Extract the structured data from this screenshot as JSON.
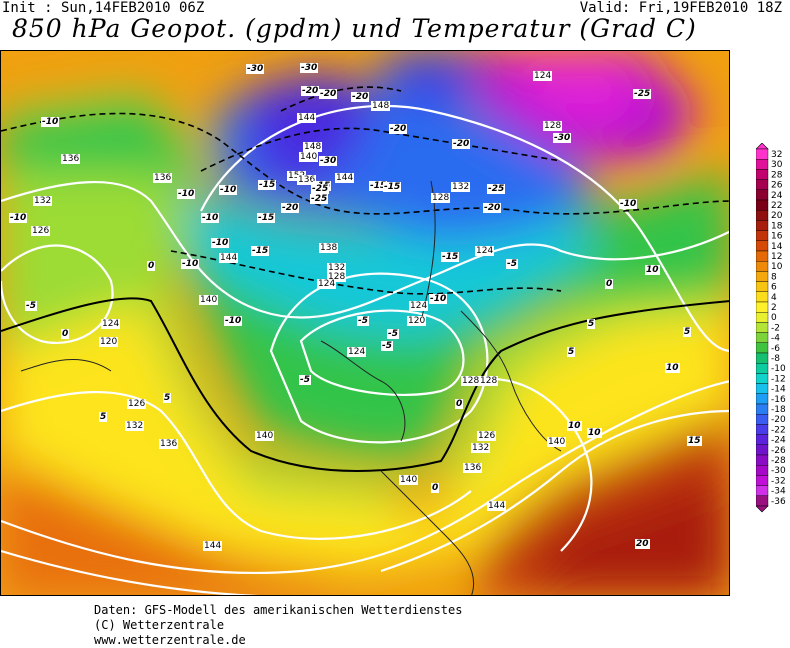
{
  "header": {
    "init": "Init : Sun,14FEB2010 06Z",
    "valid": "Valid: Fri,19FEB2010 18Z",
    "title": "850 hPa Geopot. (gpdm) und Temperatur (Grad C)"
  },
  "footer": {
    "line1": "Daten: GFS-Modell des amerikanischen Wetterdienstes",
    "line2": "(C) Wetterzentrale",
    "line3": "www.wetterzentrale.de"
  },
  "legend": {
    "ticks": [
      "32",
      "30",
      "28",
      "26",
      "24",
      "22",
      "20",
      "18",
      "16",
      "14",
      "12",
      "10",
      "8",
      "6",
      "4",
      "2",
      "0",
      "-2",
      "-4",
      "-6",
      "-8",
      "-10",
      "-12",
      "-14",
      "-16",
      "-18",
      "-20",
      "-22",
      "-24",
      "-26",
      "-28",
      "-30",
      "-32",
      "-34",
      "-36"
    ],
    "colors": [
      "#ff33cc",
      "#e0129a",
      "#c2006e",
      "#a60050",
      "#8c0030",
      "#7a0018",
      "#8f1010",
      "#a81e0c",
      "#c2350a",
      "#d64a08",
      "#e56a06",
      "#ef8a08",
      "#f5a80e",
      "#f8c412",
      "#fbdd1c",
      "#fef02a",
      "#e8f030",
      "#b4e436",
      "#7cd43a",
      "#40c440",
      "#16c070",
      "#0ccca0",
      "#10d4cc",
      "#18c0ec",
      "#1e9ef4",
      "#2a7ef2",
      "#3a5cf0",
      "#4a3ce8",
      "#5c22dc",
      "#7014cc",
      "#8a0cc4",
      "#a608c8",
      "#c010d8",
      "#d030e8",
      "#9a1080"
    ]
  },
  "geopotential_labels": [
    "136",
    "136",
    "132",
    "126",
    "124",
    "120",
    "126",
    "132",
    "136",
    "140",
    "144",
    "140",
    "144",
    "148",
    "152",
    "136",
    "140",
    "144",
    "148",
    "138",
    "132",
    "128",
    "124",
    "128",
    "132",
    "124",
    "120",
    "124",
    "124",
    "128",
    "128",
    "126",
    "132",
    "136",
    "140",
    "140",
    "144",
    "144",
    "124",
    "128"
  ],
  "temperature_labels": [
    "-30",
    "-30",
    "-20",
    "-20",
    "-25",
    "-15",
    "-10",
    "-10",
    "-10",
    "-10",
    "-10",
    "-10",
    "-10",
    "-15",
    "-15",
    "-20",
    "-25",
    "-15",
    "-20",
    "-20",
    "-30",
    "-15",
    "-20",
    "-30",
    "-25",
    "-20",
    "-15",
    "-10",
    "-15",
    "-10",
    "-5",
    "-5",
    "-5",
    "-5",
    "-5",
    "0",
    "0",
    "0",
    "0",
    "5",
    "5",
    "5",
    "5",
    "10",
    "10",
    "15",
    "20",
    "-25",
    "-10",
    "-5",
    "0",
    "5",
    "10",
    "10"
  ]
}
